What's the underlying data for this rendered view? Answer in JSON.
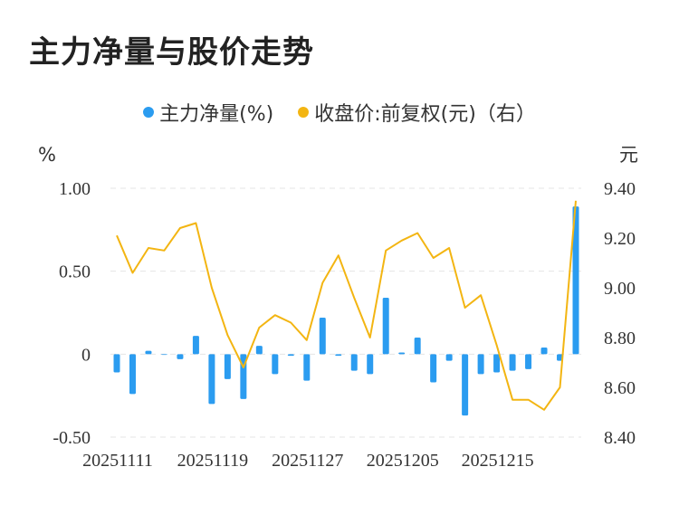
{
  "title": "主力净量与股价走势",
  "legend": {
    "bar_label": "主力净量(%)",
    "line_label": "收盘价:前复权(元)（右）"
  },
  "colors": {
    "bar": "#2b9cf0",
    "line": "#f3b512",
    "grid": "#e5e5e5"
  },
  "chart_data": {
    "type": "bar",
    "left_unit": "%",
    "right_unit": "元",
    "left_ticks": [
      "1.00",
      "0.50",
      "0",
      "-0.50"
    ],
    "right_ticks": [
      "9.40",
      "9.20",
      "9.00",
      "8.80",
      "8.60",
      "8.40"
    ],
    "ylim_left": [
      -0.5,
      1.0
    ],
    "ylim_right": [
      8.4,
      9.4
    ],
    "x_tick_labels": [
      {
        "index": 0,
        "label": "20251111"
      },
      {
        "index": 6,
        "label": "20251119"
      },
      {
        "index": 12,
        "label": "20251127"
      },
      {
        "index": 18,
        "label": "20251205"
      },
      {
        "index": 24,
        "label": "20251215"
      }
    ],
    "grid": true,
    "series": [
      {
        "name": "主力净量(%)",
        "type": "bar",
        "axis": "left",
        "values": [
          -0.11,
          -0.24,
          0.02,
          0.0,
          -0.03,
          0.11,
          -0.3,
          -0.15,
          -0.27,
          0.05,
          -0.12,
          -0.01,
          -0.16,
          0.22,
          -0.01,
          -0.1,
          -0.12,
          0.34,
          0.01,
          0.1,
          -0.17,
          -0.04,
          -0.37,
          -0.12,
          -0.11,
          -0.1,
          -0.09,
          0.04,
          -0.04,
          0.89
        ]
      },
      {
        "name": "收盘价:前复权(元)（右）",
        "type": "line",
        "axis": "right",
        "values": [
          9.21,
          9.06,
          9.16,
          9.15,
          9.24,
          9.26,
          9.0,
          8.81,
          8.68,
          8.84,
          8.89,
          8.86,
          8.79,
          9.02,
          9.13,
          8.96,
          8.8,
          9.15,
          9.19,
          9.22,
          9.12,
          9.16,
          8.92,
          8.97,
          8.77,
          8.55,
          8.55,
          8.51,
          8.6,
          9.35
        ]
      }
    ]
  }
}
